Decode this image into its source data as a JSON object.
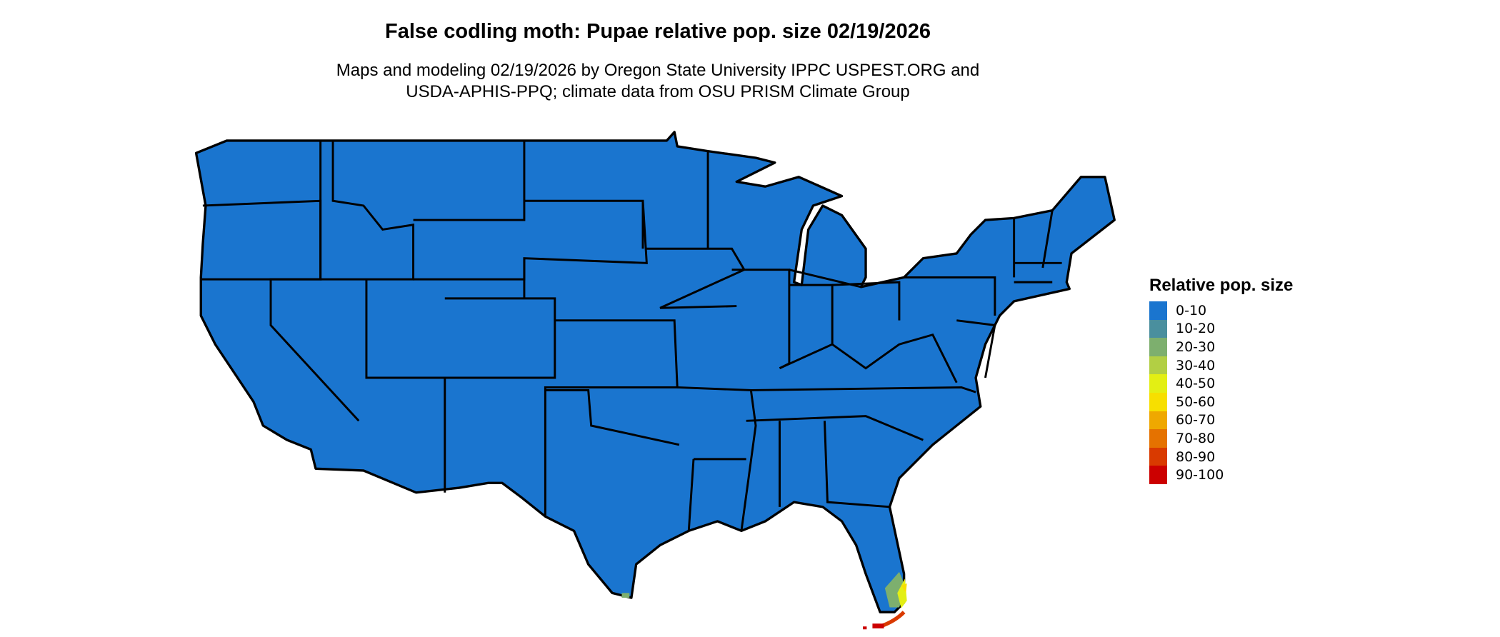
{
  "title": "False codling moth: Pupae relative pop. size 02/19/2026",
  "subtitle_line1": "Maps and modeling 02/19/2026 by Oregon State University IPPC USPEST.ORG and",
  "subtitle_line2": "USDA-APHIS-PPQ; climate data from OSU PRISM Climate Group",
  "legend": {
    "title": "Relative pop. size",
    "items": [
      {
        "label": "0-10",
        "color": "#1A75CF"
      },
      {
        "label": "10-20",
        "color": "#4A8F9E"
      },
      {
        "label": "20-30",
        "color": "#7DAF6E"
      },
      {
        "label": "30-40",
        "color": "#B2CF44"
      },
      {
        "label": "40-50",
        "color": "#E3EF14"
      },
      {
        "label": "50-60",
        "color": "#F7DF00"
      },
      {
        "label": "60-70",
        "color": "#EFA800"
      },
      {
        "label": "70-80",
        "color": "#E57200"
      },
      {
        "label": "80-90",
        "color": "#D93A00"
      },
      {
        "label": "90-100",
        "color": "#CC0000"
      }
    ]
  },
  "map": {
    "region": "Contiguous United States",
    "base_class": "0-10",
    "hotspot": "South Florida / Florida Keys"
  }
}
